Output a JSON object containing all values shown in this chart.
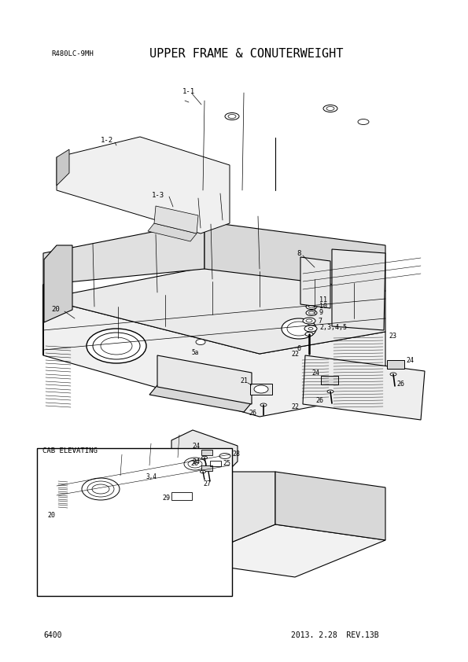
{
  "title": "UPPER FRAME & CONUTERWEIGHT",
  "model": "R480LC-9MH",
  "page_number": "6400",
  "date_rev": "2013. 2.28  REV.13B",
  "background_color": "#ffffff",
  "text_color": "#000000",
  "line_color": "#000000",
  "title_fontsize": 11,
  "model_fontsize": 6.5,
  "footer_fontsize": 7
}
